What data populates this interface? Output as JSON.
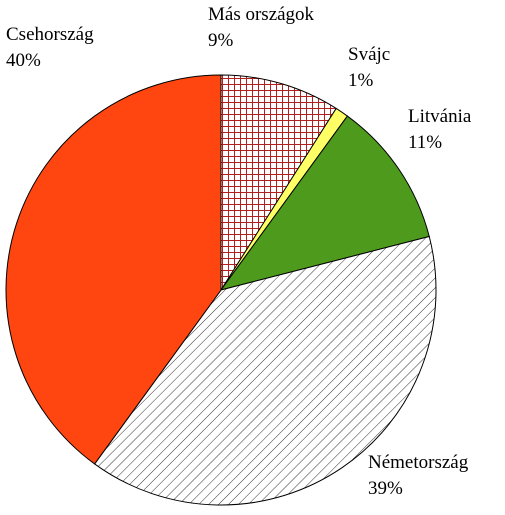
{
  "chart_data": {
    "type": "pie",
    "categories": [
      "Más országok",
      "Svájc",
      "Litvánia",
      "Németország",
      "Csehország"
    ],
    "values": [
      9,
      1,
      11,
      39,
      40
    ],
    "value_labels": [
      "9%",
      "1%",
      "11%",
      "39%",
      "40%"
    ],
    "colors": [
      "#cc2222",
      "#ffff66",
      "#4e9a1c",
      "#333333",
      "#ff4610"
    ],
    "patterns": [
      "grid",
      null,
      null,
      "hatch",
      null
    ]
  }
}
